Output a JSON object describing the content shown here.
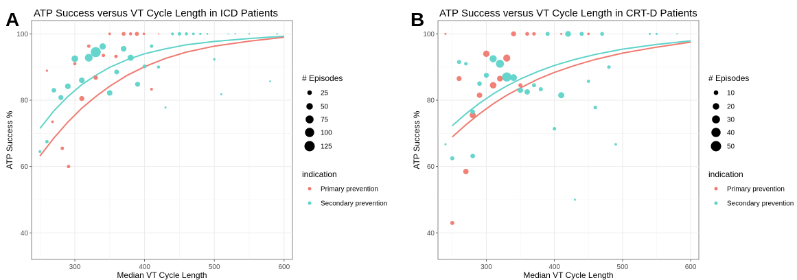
{
  "chart_data": [
    {
      "type": "scatter",
      "panel_label": "A",
      "title": "ATP Success versus VT Cycle Length in ICD Patients",
      "xlabel": "Median VT Cycle Length",
      "ylabel": "ATP Success %",
      "xlim": [
        238,
        612
      ],
      "ylim": [
        32,
        104
      ],
      "x_ticks": [
        300,
        400,
        500,
        600
      ],
      "y_ticks": [
        40,
        60,
        80,
        100
      ],
      "grid": true,
      "size_legend": {
        "title": "# Episodes",
        "values": [
          25,
          50,
          75,
          100,
          125
        ],
        "max": 125
      },
      "color_legend": {
        "title": "indication",
        "position": "right",
        "entries": [
          {
            "label": "Primary prevention",
            "color": "#F07A70"
          },
          {
            "label": "Secondary prevention",
            "color": "#5ED3C9"
          }
        ]
      },
      "series": [
        {
          "name": "Primary prevention",
          "color": "#F07A70",
          "points": [
            {
              "x": 260,
              "y": 88.9,
              "n": 6
            },
            {
              "x": 268,
              "y": 73.5,
              "n": 8
            },
            {
              "x": 282,
              "y": 65.5,
              "n": 14
            },
            {
              "x": 291,
              "y": 60,
              "n": 14
            },
            {
              "x": 300,
              "y": 91,
              "n": 12
            },
            {
              "x": 310,
              "y": 80.5,
              "n": 30
            },
            {
              "x": 320,
              "y": 96.3,
              "n": 14
            },
            {
              "x": 330,
              "y": 86.8,
              "n": 22
            },
            {
              "x": 341,
              "y": 93.5,
              "n": 14
            },
            {
              "x": 350,
              "y": 100,
              "n": 8
            },
            {
              "x": 359,
              "y": 93.2,
              "n": 14
            },
            {
              "x": 370,
              "y": 100,
              "n": 18
            },
            {
              "x": 380,
              "y": 100,
              "n": 12
            },
            {
              "x": 389,
              "y": 100,
              "n": 20
            },
            {
              "x": 399,
              "y": 100,
              "n": 7
            },
            {
              "x": 410,
              "y": 83.3,
              "n": 9
            },
            {
              "x": 420,
              "y": 100,
              "n": 2
            }
          ],
          "fit": [
            {
              "x": 250,
              "y": 63.2
            },
            {
              "x": 270,
              "y": 68.6
            },
            {
              "x": 290,
              "y": 73.4
            },
            {
              "x": 310,
              "y": 77.6
            },
            {
              "x": 330,
              "y": 81.1
            },
            {
              "x": 350,
              "y": 84.2
            },
            {
              "x": 375,
              "y": 87.5
            },
            {
              "x": 400,
              "y": 90.1
            },
            {
              "x": 430,
              "y": 92.6
            },
            {
              "x": 460,
              "y": 94.5
            },
            {
              "x": 500,
              "y": 96.3
            },
            {
              "x": 550,
              "y": 97.8
            },
            {
              "x": 600,
              "y": 99
            }
          ]
        },
        {
          "name": "Secondary prevention",
          "color": "#5ED3C9",
          "points": [
            {
              "x": 250,
              "y": 64.5,
              "n": 10
            },
            {
              "x": 260,
              "y": 67.5,
              "n": 14
            },
            {
              "x": 270,
              "y": 83,
              "n": 26
            },
            {
              "x": 280,
              "y": 80.8,
              "n": 30
            },
            {
              "x": 290,
              "y": 84.2,
              "n": 38
            },
            {
              "x": 300,
              "y": 92.5,
              "n": 52
            },
            {
              "x": 310,
              "y": 86,
              "n": 38
            },
            {
              "x": 320,
              "y": 92.8,
              "n": 70
            },
            {
              "x": 330,
              "y": 94.5,
              "n": 120
            },
            {
              "x": 340,
              "y": 96.2,
              "n": 48
            },
            {
              "x": 350,
              "y": 82.2,
              "n": 36
            },
            {
              "x": 360,
              "y": 88.5,
              "n": 28
            },
            {
              "x": 370,
              "y": 95.5,
              "n": 38
            },
            {
              "x": 380,
              "y": 92.8,
              "n": 46
            },
            {
              "x": 390,
              "y": 84.8,
              "n": 30
            },
            {
              "x": 400,
              "y": 90.2,
              "n": 18
            },
            {
              "x": 410,
              "y": 96.3,
              "n": 14
            },
            {
              "x": 420,
              "y": 90,
              "n": 12
            },
            {
              "x": 430,
              "y": 77.8,
              "n": 5
            },
            {
              "x": 440,
              "y": 100,
              "n": 10
            },
            {
              "x": 450,
              "y": 100,
              "n": 14
            },
            {
              "x": 460,
              "y": 100,
              "n": 12
            },
            {
              "x": 470,
              "y": 100,
              "n": 8
            },
            {
              "x": 480,
              "y": 100,
              "n": 6
            },
            {
              "x": 490,
              "y": 100,
              "n": 4
            },
            {
              "x": 500,
              "y": 92.3,
              "n": 7
            },
            {
              "x": 510,
              "y": 81.8,
              "n": 5
            },
            {
              "x": 520,
              "y": 100,
              "n": 2
            },
            {
              "x": 530,
              "y": 100,
              "n": 3
            },
            {
              "x": 550,
              "y": 100,
              "n": 3
            },
            {
              "x": 580,
              "y": 85.7,
              "n": 4
            },
            {
              "x": 590,
              "y": 100,
              "n": 3
            }
          ],
          "fit": [
            {
              "x": 250,
              "y": 71.5
            },
            {
              "x": 270,
              "y": 76.8
            },
            {
              "x": 290,
              "y": 81.1
            },
            {
              "x": 310,
              "y": 84.7
            },
            {
              "x": 330,
              "y": 87.5
            },
            {
              "x": 350,
              "y": 89.9
            },
            {
              "x": 375,
              "y": 92.2
            },
            {
              "x": 400,
              "y": 94
            },
            {
              "x": 430,
              "y": 95.5
            },
            {
              "x": 460,
              "y": 96.7
            },
            {
              "x": 500,
              "y": 97.7
            },
            {
              "x": 550,
              "y": 98.6
            },
            {
              "x": 600,
              "y": 99.3
            }
          ]
        }
      ]
    },
    {
      "type": "scatter",
      "panel_label": "B",
      "title": "ATP Success versus VT Cycle Length in CRT-D Patients",
      "xlabel": "Median VT Cycle Length",
      "ylabel": "ATP Success %",
      "xlim": [
        229,
        612
      ],
      "ylim": [
        32,
        104
      ],
      "x_ticks": [
        300,
        400,
        500,
        600
      ],
      "y_ticks": [
        40,
        60,
        80,
        100
      ],
      "grid": true,
      "size_legend": {
        "title": "# Episodes",
        "values": [
          10,
          20,
          30,
          40,
          50
        ],
        "max": 50
      },
      "color_legend": {
        "title": "indication",
        "position": "right",
        "entries": [
          {
            "label": "Primary prevention",
            "color": "#F07A70"
          },
          {
            "label": "Secondary prevention",
            "color": "#5ED3C9"
          }
        ]
      },
      "series": [
        {
          "name": "Primary prevention",
          "color": "#F07A70",
          "points": [
            {
              "x": 240,
              "y": 100,
              "n": 2
            },
            {
              "x": 250,
              "y": 43,
              "n": 8
            },
            {
              "x": 260,
              "y": 86.5,
              "n": 12
            },
            {
              "x": 270,
              "y": 58.5,
              "n": 14
            },
            {
              "x": 280,
              "y": 75.5,
              "n": 18
            },
            {
              "x": 290,
              "y": 81.5,
              "n": 14
            },
            {
              "x": 300,
              "y": 94,
              "n": 20
            },
            {
              "x": 310,
              "y": 84.5,
              "n": 20
            },
            {
              "x": 320,
              "y": 86.5,
              "n": 16
            },
            {
              "x": 330,
              "y": 92.7,
              "n": 24
            },
            {
              "x": 340,
              "y": 100,
              "n": 12
            },
            {
              "x": 350,
              "y": 84.5,
              "n": 8
            },
            {
              "x": 360,
              "y": 100,
              "n": 7
            },
            {
              "x": 370,
              "y": 100,
              "n": 6
            },
            {
              "x": 410,
              "y": 100,
              "n": 2
            },
            {
              "x": 440,
              "y": 100,
              "n": 2
            },
            {
              "x": 450,
              "y": 100,
              "n": 3
            }
          ],
          "fit": [
            {
              "x": 250,
              "y": 68.9
            },
            {
              "x": 270,
              "y": 72.6
            },
            {
              "x": 290,
              "y": 75.9
            },
            {
              "x": 310,
              "y": 78.9
            },
            {
              "x": 330,
              "y": 81.5
            },
            {
              "x": 350,
              "y": 83.7
            },
            {
              "x": 375,
              "y": 86.3
            },
            {
              "x": 400,
              "y": 88.4
            },
            {
              "x": 430,
              "y": 90.5
            },
            {
              "x": 460,
              "y": 92.3
            },
            {
              "x": 500,
              "y": 94.2
            },
            {
              "x": 550,
              "y": 96
            },
            {
              "x": 600,
              "y": 97.5
            }
          ]
        },
        {
          "name": "Secondary prevention",
          "color": "#5ED3C9",
          "points": [
            {
              "x": 240,
              "y": 66.7,
              "n": 2
            },
            {
              "x": 250,
              "y": 62.5,
              "n": 8
            },
            {
              "x": 260,
              "y": 91.5,
              "n": 8
            },
            {
              "x": 270,
              "y": 91,
              "n": 6
            },
            {
              "x": 280,
              "y": 63.2,
              "n": 10
            },
            {
              "x": 280,
              "y": 76.5,
              "n": 10
            },
            {
              "x": 290,
              "y": 85,
              "n": 10
            },
            {
              "x": 300,
              "y": 87.5,
              "n": 12
            },
            {
              "x": 310,
              "y": 92.5,
              "n": 24
            },
            {
              "x": 320,
              "y": 91,
              "n": 30
            },
            {
              "x": 330,
              "y": 87,
              "n": 40
            },
            {
              "x": 340,
              "y": 86.8,
              "n": 22
            },
            {
              "x": 350,
              "y": 83,
              "n": 14
            },
            {
              "x": 360,
              "y": 82.5,
              "n": 14
            },
            {
              "x": 370,
              "y": 84.5,
              "n": 8
            },
            {
              "x": 380,
              "y": 83.3,
              "n": 8
            },
            {
              "x": 390,
              "y": 100,
              "n": 8
            },
            {
              "x": 400,
              "y": 71.4,
              "n": 6
            },
            {
              "x": 410,
              "y": 81.5,
              "n": 18
            },
            {
              "x": 420,
              "y": 100,
              "n": 16
            },
            {
              "x": 430,
              "y": 50,
              "n": 2
            },
            {
              "x": 440,
              "y": 100,
              "n": 8
            },
            {
              "x": 450,
              "y": 85.7,
              "n": 5
            },
            {
              "x": 460,
              "y": 77.8,
              "n": 6
            },
            {
              "x": 470,
              "y": 100,
              "n": 7
            },
            {
              "x": 480,
              "y": 90,
              "n": 6
            },
            {
              "x": 490,
              "y": 66.7,
              "n": 3
            },
            {
              "x": 540,
              "y": 100,
              "n": 2
            },
            {
              "x": 550,
              "y": 100,
              "n": 2
            },
            {
              "x": 580,
              "y": 100,
              "n": 1
            }
          ],
          "fit": [
            {
              "x": 250,
              "y": 72.3
            },
            {
              "x": 270,
              "y": 75.9
            },
            {
              "x": 290,
              "y": 79.1
            },
            {
              "x": 310,
              "y": 81.9
            },
            {
              "x": 330,
              "y": 84.3
            },
            {
              "x": 350,
              "y": 86.4
            },
            {
              "x": 375,
              "y": 88.6
            },
            {
              "x": 400,
              "y": 90.5
            },
            {
              "x": 430,
              "y": 92.3
            },
            {
              "x": 460,
              "y": 93.8
            },
            {
              "x": 500,
              "y": 95.4
            },
            {
              "x": 550,
              "y": 96.8
            },
            {
              "x": 600,
              "y": 97.9
            }
          ]
        }
      ]
    }
  ]
}
